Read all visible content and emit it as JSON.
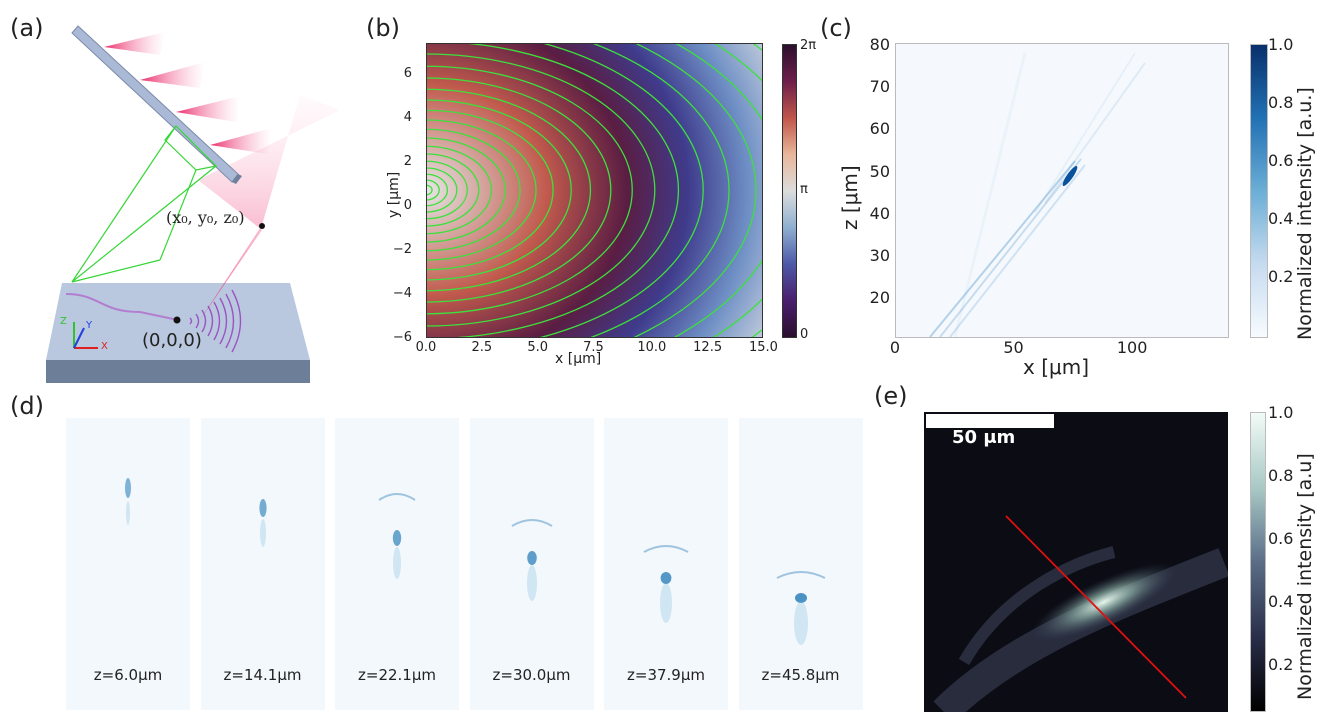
{
  "panels": {
    "a": {
      "label": "(a)",
      "point_label": "(x₀, y₀, z₀)",
      "origin_label": "(0,0,0)",
      "axis_z": "Z",
      "axis_y": "Y",
      "axis_x": "X"
    },
    "b": {
      "label": "(b)",
      "xlabel": "x [μm]",
      "ylabel": "y [μm]",
      "xticks": [
        "0.0",
        "2.5",
        "5.0",
        "7.5",
        "10.0",
        "12.5",
        "15.0"
      ],
      "yticks": [
        "6",
        "4",
        "2",
        "0",
        "−2",
        "−4",
        "−6"
      ],
      "colorbar_ticks": [
        "2π",
        "π",
        "0"
      ]
    },
    "c": {
      "label": "(c)",
      "xlabel": "x [μm]",
      "ylabel": "z [μm]",
      "xticks": [
        "0",
        "50",
        "100"
      ],
      "yticks": [
        "80",
        "70",
        "60",
        "50",
        "40",
        "30",
        "20"
      ],
      "colorbar_label": "Normalized intensity [a.u.]",
      "colorbar_ticks": [
        "1.0",
        "0.8",
        "0.6",
        "0.4",
        "0.2"
      ]
    },
    "d": {
      "label": "(d)",
      "slices": [
        "z=6.0μm",
        "z=14.1μm",
        "z=22.1μm",
        "z=30.0μm",
        "z=37.9μm",
        "z=45.8μm"
      ]
    },
    "e": {
      "label": "(e)",
      "scalebar": "50 μm",
      "colorbar_label": "Normalized intensity [a.u]",
      "colorbar_ticks": [
        "1.0",
        "0.8",
        "0.6",
        "0.4",
        "0.2"
      ]
    }
  }
}
